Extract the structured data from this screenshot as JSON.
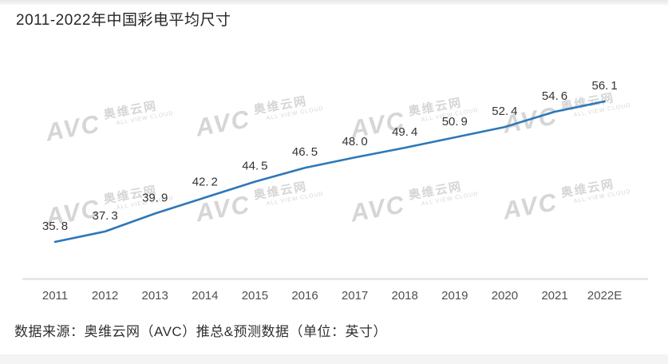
{
  "page": {
    "title": "2011-2022年中国彩电平均尺寸",
    "source_note": "数据来源：奥维云网（AVC）推总&预测数据（单位：英寸）"
  },
  "watermark": {
    "brand": "AVC",
    "name": "奥维云网",
    "subtext": "ALL VIEW CLOUD"
  },
  "chart_data": {
    "type": "line",
    "title": "2011-2022年中国彩电平均尺寸",
    "categories": [
      "2011",
      "2012",
      "2013",
      "2014",
      "2015",
      "2016",
      "2017",
      "2018",
      "2019",
      "2020",
      "2021",
      "2022E"
    ],
    "values": [
      35.8,
      37.3,
      39.9,
      42.2,
      44.5,
      46.5,
      48.0,
      49.4,
      50.9,
      52.4,
      54.6,
      56.1
    ],
    "labels": [
      "35.8",
      "37.3",
      "39.9",
      "42.2",
      "44.5",
      "46.5",
      "48.0",
      "49.4",
      "50.9",
      "52.4",
      "54.6",
      "56.1"
    ],
    "xlabel": "",
    "ylabel": "",
    "unit": "英寸",
    "ylim": [
      34,
      58
    ],
    "grid": false,
    "legend": false,
    "line_color": "#2e77b8",
    "axis_color": "#e3e3e3",
    "label_color": "#333333",
    "tick_color": "#4f4f4f"
  }
}
